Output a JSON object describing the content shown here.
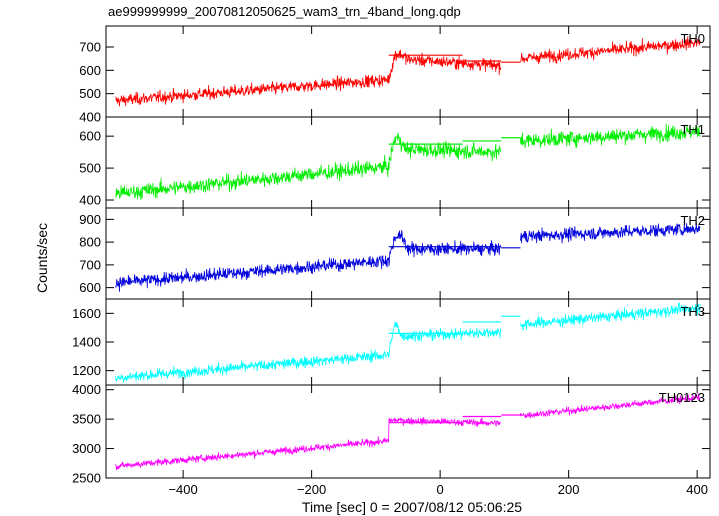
{
  "chart_data": {
    "type": "line",
    "title": "ae999999999_20070812050625_wam3_trn_4band_long.qdp",
    "xlabel": "Time [sec] 0 = 2007/08/12 05:06:25",
    "ylabel": "Counts/sec",
    "xlim": [
      -520,
      420
    ],
    "x_ticks": [
      -400,
      -200,
      0,
      200,
      400
    ],
    "grid": false,
    "gap_x": [
      95,
      125
    ],
    "panels": [
      {
        "name": "TH0",
        "color": "#ff0000",
        "ylim": [
          400,
          790
        ],
        "y_ticks": [
          400,
          500,
          600,
          700
        ],
        "trend_x": [
          -505,
          -80,
          -70,
          95,
          125,
          405
        ],
        "trend_y": [
          470,
          560,
          650,
          620,
          650,
          720
        ],
        "noise": 22,
        "bump": [
          -80,
          -50,
          20
        ],
        "bins": [
          [
            -80,
            35,
            665
          ],
          [
            35,
            95,
            640
          ],
          [
            95,
            125,
            635
          ]
        ]
      },
      {
        "name": "TH1",
        "color": "#00ee00",
        "ylim": [
          375,
          660
        ],
        "y_ticks": [
          400,
          500,
          600
        ],
        "trend_x": [
          -505,
          -80,
          -70,
          95,
          125,
          405
        ],
        "trend_y": [
          420,
          505,
          560,
          550,
          585,
          615
        ],
        "noise": 20,
        "bump": [
          -80,
          -55,
          35
        ],
        "bins": [
          [
            -80,
            35,
            575
          ],
          [
            35,
            95,
            585
          ],
          [
            95,
            125,
            595
          ]
        ]
      },
      {
        "name": "TH2",
        "color": "#0000dd",
        "ylim": [
          550,
          950
        ],
        "y_ticks": [
          600,
          700,
          800,
          900
        ],
        "trend_x": [
          -505,
          -80,
          -70,
          95,
          125,
          405
        ],
        "trend_y": [
          620,
          720,
          770,
          770,
          825,
          860
        ],
        "noise": 24,
        "bump": [
          -80,
          -50,
          60
        ],
        "bins": [
          [
            -80,
            35,
            780
          ],
          [
            35,
            95,
            780
          ],
          [
            95,
            125,
            775
          ]
        ]
      },
      {
        "name": "TH3",
        "color": "#00ffff",
        "ylim": [
          1100,
          1700
        ],
        "y_ticks": [
          1200,
          1400,
          1600
        ],
        "trend_x": [
          -505,
          -80,
          -70,
          95,
          125,
          405
        ],
        "trend_y": [
          1150,
          1310,
          1440,
          1470,
          1520,
          1640
        ],
        "noise": 32,
        "bump": [
          -80,
          -60,
          80
        ],
        "bins": [
          [
            -80,
            35,
            1460
          ],
          [
            35,
            95,
            1540
          ],
          [
            95,
            125,
            1580
          ]
        ]
      },
      {
        "name": "TH0123",
        "color": "#ff00ff",
        "ylim": [
          2500,
          4080
        ],
        "y_ticks": [
          2500,
          3000,
          3500,
          4000
        ],
        "trend_x": [
          -505,
          -80,
          -80,
          -70,
          95,
          125,
          405
        ],
        "trend_y": [
          2700,
          3130,
          3480,
          3480,
          3430,
          3560,
          3870
        ],
        "noise": 50,
        "bump": [
          0,
          0,
          0
        ],
        "bins": [
          [
            -80,
            35,
            3440
          ],
          [
            35,
            95,
            3545
          ],
          [
            95,
            125,
            3570
          ]
        ]
      }
    ]
  }
}
